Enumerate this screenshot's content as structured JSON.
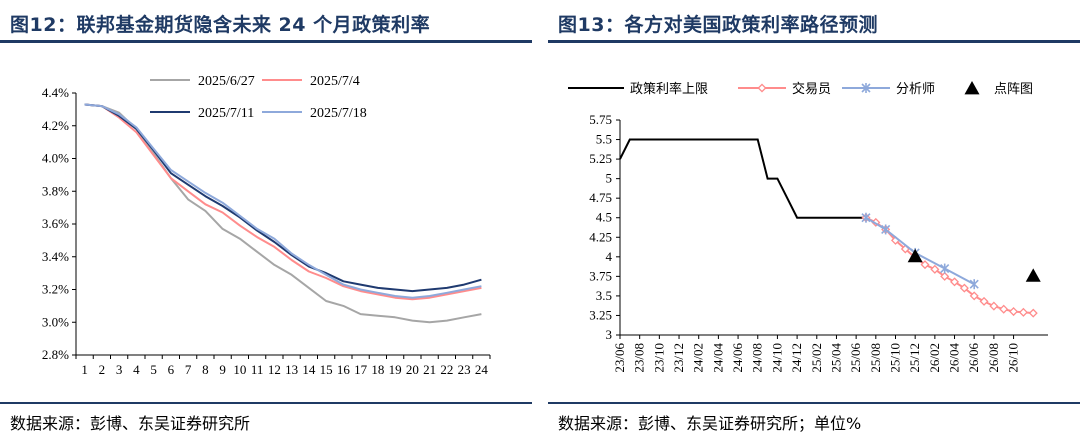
{
  "left_panel": {
    "title": "图12：联邦基金期货隐含未来 24 个月政策利率",
    "source": "数据来源：彭博、东吴证券研究所"
  },
  "right_panel": {
    "title": "图13：各方对美国政策利率路径预测",
    "source": "数据来源：彭博、东吴证券研究所；单位%"
  },
  "colors": {
    "title": "#1f3a64"
  },
  "chart_data": [
    {
      "type": "line",
      "title": "",
      "xlabel": "",
      "ylabel": "",
      "x": [
        1,
        2,
        3,
        4,
        5,
        6,
        7,
        8,
        9,
        10,
        11,
        12,
        13,
        14,
        15,
        16,
        17,
        18,
        19,
        20,
        21,
        22,
        23,
        24
      ],
      "x_tick_labels": [
        "1",
        "2",
        "3",
        "4",
        "5",
        "6",
        "7",
        "8",
        "9",
        "10",
        "11",
        "12",
        "13",
        "14",
        "15",
        "16",
        "17",
        "18",
        "19",
        "20",
        "21",
        "22",
        "23",
        "24"
      ],
      "ylim": [
        2.8,
        4.4
      ],
      "y_ticks": [
        2.8,
        3.0,
        3.2,
        3.4,
        3.6,
        3.8,
        4.0,
        4.2,
        4.4
      ],
      "y_tick_labels": [
        "2.8%",
        "3.0%",
        "3.2%",
        "3.4%",
        "3.6%",
        "3.8%",
        "4.0%",
        "4.2%",
        "4.4%"
      ],
      "legend_position": "top",
      "grid": false,
      "series": [
        {
          "name": "2025/6/27",
          "color": "#a6a6a6",
          "values": [
            4.33,
            4.32,
            4.28,
            4.18,
            4.03,
            3.88,
            3.75,
            3.68,
            3.57,
            3.51,
            3.43,
            3.35,
            3.29,
            3.21,
            3.13,
            3.1,
            3.05,
            3.04,
            3.03,
            3.01,
            3.0,
            3.01,
            3.03,
            3.05
          ]
        },
        {
          "name": "2025/7/4",
          "color": "#ff8c8c",
          "values": [
            4.33,
            4.32,
            4.25,
            4.16,
            4.02,
            3.88,
            3.8,
            3.72,
            3.67,
            3.59,
            3.52,
            3.46,
            3.38,
            3.31,
            3.27,
            3.22,
            3.19,
            3.17,
            3.15,
            3.14,
            3.15,
            3.17,
            3.19,
            3.21
          ]
        },
        {
          "name": "2025/7/11",
          "color": "#1f3a70",
          "values": [
            4.33,
            4.32,
            4.26,
            4.18,
            4.05,
            3.91,
            3.84,
            3.77,
            3.71,
            3.64,
            3.56,
            3.49,
            3.41,
            3.34,
            3.3,
            3.25,
            3.23,
            3.21,
            3.2,
            3.19,
            3.2,
            3.21,
            3.23,
            3.26
          ]
        },
        {
          "name": "2025/7/18",
          "color": "#8ea9db",
          "values": [
            4.33,
            4.32,
            4.27,
            4.19,
            4.06,
            3.93,
            3.86,
            3.79,
            3.73,
            3.65,
            3.57,
            3.51,
            3.42,
            3.35,
            3.29,
            3.23,
            3.2,
            3.18,
            3.16,
            3.15,
            3.16,
            3.18,
            3.2,
            3.22
          ]
        }
      ]
    },
    {
      "type": "line",
      "title": "",
      "xlabel": "",
      "ylabel": "",
      "ylim": [
        3,
        5.75
      ],
      "y_ticks": [
        3,
        3.25,
        3.5,
        3.75,
        4,
        4.25,
        4.5,
        4.75,
        5,
        5.25,
        5.5,
        5.75
      ],
      "y_tick_labels": [
        "3",
        "3.25",
        "3.5",
        "3.75",
        "4",
        "4.25",
        "4.5",
        "4.75",
        "5",
        "5.25",
        "5.5",
        "5.75"
      ],
      "x_tick_labels": [
        "23/06",
        "23/08",
        "23/10",
        "23/12",
        "24/02",
        "24/04",
        "24/06",
        "24/08",
        "24/10",
        "24/12",
        "25/02",
        "25/04",
        "25/06",
        "25/08",
        "25/10",
        "25/12",
        "26/02",
        "26/04",
        "26/06",
        "26/08",
        "26/10"
      ],
      "legend_position": "top",
      "grid": false,
      "series": [
        {
          "name": "政策利率上限",
          "color": "#000000",
          "marker": "none",
          "x": [
            "2023/06",
            "2023/07",
            "2024/08",
            "2024/09",
            "2024/10",
            "2024/11",
            "2024/12",
            "2025/01",
            "2025/07"
          ],
          "values": [
            5.25,
            5.5,
            5.5,
            5.0,
            5.0,
            4.75,
            4.5,
            4.5,
            4.5
          ]
        },
        {
          "name": "交易员",
          "color": "#ff8c8c",
          "marker": "diamond-open",
          "x": [
            "2025/07",
            "2025/08",
            "2025/09",
            "2025/10",
            "2025/11",
            "2025/12",
            "2026/01",
            "2026/02",
            "2026/03",
            "2026/04",
            "2026/05",
            "2026/06",
            "2026/07",
            "2026/08",
            "2026/09",
            "2026/10",
            "2026/11",
            "2026/12"
          ],
          "values": [
            4.5,
            4.44,
            4.35,
            4.21,
            4.1,
            3.99,
            3.9,
            3.84,
            3.75,
            3.68,
            3.6,
            3.5,
            3.43,
            3.37,
            3.33,
            3.3,
            3.29,
            3.28
          ]
        },
        {
          "name": "分析师",
          "color": "#8ea9db",
          "marker": "star",
          "x": [
            "2025/07",
            "2025/09",
            "2025/12",
            "2026/03",
            "2026/06"
          ],
          "values": [
            4.5,
            4.35,
            4.05,
            3.85,
            3.65
          ]
        },
        {
          "name": "点阵图",
          "color": "#000000",
          "marker": "triangle",
          "x": [
            "2025/12",
            "2026/12"
          ],
          "values": [
            4.0,
            3.75
          ]
        }
      ]
    }
  ]
}
